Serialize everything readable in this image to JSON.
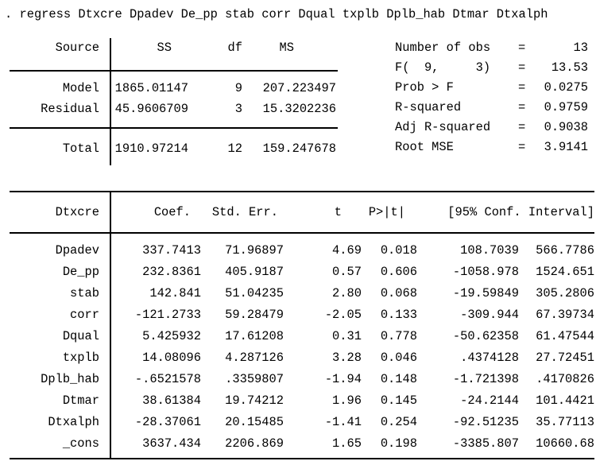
{
  "command": ". regress Dtxcre Dpadev De_pp stab corr Dqual txplb Dplb_hab Dtmar Dtxalph",
  "colors": {
    "text": "#000000",
    "background": "#ffffff",
    "rule": "#000000"
  },
  "anova": {
    "headers": {
      "source": "Source",
      "ss": "SS",
      "df": "df",
      "ms": "MS"
    },
    "rows": [
      {
        "source": "Model",
        "ss": "1865.01147",
        "df": "9",
        "ms": "207.223497"
      },
      {
        "source": "Residual",
        "ss": "45.9606709",
        "df": "3",
        "ms": "15.3202236"
      }
    ],
    "total_row": {
      "source": "Total",
      "ss": "1910.97214",
      "df": "12",
      "ms": "159.247678"
    }
  },
  "stats": {
    "eq": "=",
    "items": [
      {
        "label": "Number of obs",
        "value": "13"
      },
      {
        "label": "F(  9,     3)",
        "value": "13.53"
      },
      {
        "label": "Prob > F",
        "value": "0.0275"
      },
      {
        "label": "R-squared",
        "value": "0.9759"
      },
      {
        "label": "Adj R-squared",
        "value": "0.9038"
      },
      {
        "label": "Root MSE",
        "value": "3.9141"
      }
    ]
  },
  "coef_table": {
    "headers": {
      "depvar": "Dtxcre",
      "coef": "Coef.",
      "std_err": "Std. Err.",
      "t": "t",
      "p": "P>|t|",
      "ci": "[95% Conf. Interval]"
    },
    "rows": [
      {
        "var": "Dpadev",
        "coef": "337.7413",
        "std_err": "71.96897",
        "t": "4.69",
        "p": "0.018",
        "ci_low": "108.7039",
        "ci_high": "566.7786"
      },
      {
        "var": "De_pp",
        "coef": "232.8361",
        "std_err": "405.9187",
        "t": "0.57",
        "p": "0.606",
        "ci_low": "-1058.978",
        "ci_high": "1524.651"
      },
      {
        "var": "stab",
        "coef": "142.841",
        "std_err": "51.04235",
        "t": "2.80",
        "p": "0.068",
        "ci_low": "-19.59849",
        "ci_high": "305.2806"
      },
      {
        "var": "corr",
        "coef": "-121.2733",
        "std_err": "59.28479",
        "t": "-2.05",
        "p": "0.133",
        "ci_low": "-309.944",
        "ci_high": "67.39734"
      },
      {
        "var": "Dqual",
        "coef": "5.425932",
        "std_err": "17.61208",
        "t": "0.31",
        "p": "0.778",
        "ci_low": "-50.62358",
        "ci_high": "61.47544"
      },
      {
        "var": "txplb",
        "coef": "14.08096",
        "std_err": "4.287126",
        "t": "3.28",
        "p": "0.046",
        "ci_low": ".4374128",
        "ci_high": "27.72451"
      },
      {
        "var": "Dplb_hab",
        "coef": "-.6521578",
        "std_err": ".3359807",
        "t": "-1.94",
        "p": "0.148",
        "ci_low": "-1.721398",
        "ci_high": ".4170826"
      },
      {
        "var": "Dtmar",
        "coef": "38.61384",
        "std_err": "19.74212",
        "t": "1.96",
        "p": "0.145",
        "ci_low": "-24.2144",
        "ci_high": "101.4421"
      },
      {
        "var": "Dtxalph",
        "coef": "-28.37061",
        "std_err": "20.15485",
        "t": "-1.41",
        "p": "0.254",
        "ci_low": "-92.51235",
        "ci_high": "35.77113"
      },
      {
        "var": "_cons",
        "coef": "3637.434",
        "std_err": "2206.869",
        "t": "1.65",
        "p": "0.198",
        "ci_low": "-3385.807",
        "ci_high": "10660.68"
      }
    ]
  }
}
